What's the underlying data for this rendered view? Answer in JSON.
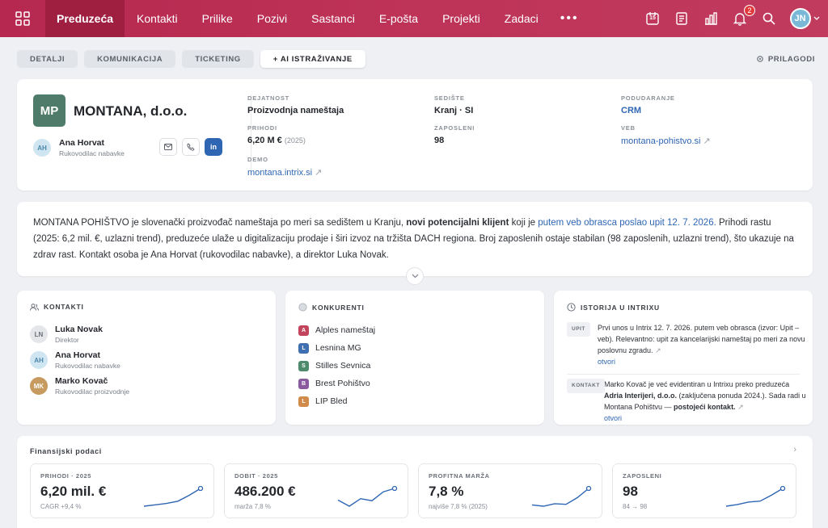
{
  "nav": {
    "items": [
      "Preduzeća",
      "Kontakti",
      "Prilike",
      "Pozivi",
      "Sastanci",
      "E-pošta",
      "Projekti",
      "Zadaci"
    ],
    "active_index": 0,
    "more": "•••",
    "calendar_day": "15",
    "notif_count": "2",
    "user_initials": "JN"
  },
  "subtabs": {
    "items": [
      "DETALJI",
      "KOMUNIKACIJA",
      "TICKETING",
      "+ AI ISTRAŽIVANJE"
    ],
    "active_index": 3,
    "customize": "PRILAGODI"
  },
  "company": {
    "logo_initials": "MP",
    "logo_color": "#4e7b6a",
    "name": "MONTANA, d.o.o.",
    "contact_initials": "AH",
    "contact_name": "Ana Horvat",
    "contact_role": "Rukovodilac nabavke",
    "linkedin": "in",
    "fields": {
      "industry_label": "DEJATNOST",
      "industry": "Proizvodnja nameštaja",
      "revenue_label": "PRIHODI",
      "revenue": "6,20 M €",
      "revenue_year": "(2025)",
      "demo_label": "DEMO",
      "demo": "montana.intrix.si",
      "hq_label": "SEDIŠTE",
      "hq": "Kranj · SI",
      "employees_label": "ZAPOSLENI",
      "employees": "98",
      "match_label": "PODUDARANJE",
      "match": "CRM",
      "web_label": "VEB",
      "web": "montana-pohistvo.si"
    }
  },
  "summary": {
    "p1": "MONTANA POHIŠTVO je slovenački proizvođač nameštaja po meri sa sedištem u Kranju, ",
    "b1": "novi potencijalni klijent",
    "p2": " koji je ",
    "l1": "putem veb obrasca poslao upit 12. 7. 2026.",
    "p3": " Prihodi rastu (2025: 6,2 mil. €, uzlazni trend), preduzeće ulaže u digitalizaciju prodaje i širi izvoz na tržišta DACH regiona. Broj zaposlenih ostaje stabilan (98 zaposlenih, uzlazni trend), što ukazuje na zdrav rast. Kontakt osoba je Ana Horvat (rukovodilac nabavke), a direktor Luka Novak."
  },
  "kontakti": {
    "title": "KONTAKTI",
    "items": [
      {
        "initials": "LN",
        "name": "Luka Novak",
        "role": "Direktor"
      },
      {
        "initials": "AH",
        "name": "Ana Horvat",
        "role": "Rukovodilac nabavke"
      },
      {
        "initials": "MK",
        "name": "Marko Kovač",
        "role": "Rukovodilac proizvodnje"
      }
    ]
  },
  "konkurenti": {
    "title": "KONKURENTI",
    "items": [
      {
        "letter": "A",
        "name": "Alples nameštaj",
        "color": "#c2455d"
      },
      {
        "letter": "L",
        "name": "Lesnina MG",
        "color": "#3f6fb0"
      },
      {
        "letter": "S",
        "name": "Stilles Sevnica",
        "color": "#4d8a6c"
      },
      {
        "letter": "B",
        "name": "Brest Pohištvo",
        "color": "#8a5a9e"
      },
      {
        "letter": "L",
        "name": "LIP Bled",
        "color": "#d08a4a"
      }
    ]
  },
  "istorija": {
    "title": "ISTORIJA U INTRIXU",
    "item1": {
      "tag": "UPIT",
      "text": "Prvi unos u Intrix 12. 7. 2026. putem veb obrasca (izvor: Upit – veb). Relevantno: upit za kancelarijski nameštaj po meri za novu poslovnu zgradu.",
      "link": "otvori"
    },
    "item2": {
      "tag": "KONTAKT",
      "t1": "Marko Kovač je već evidentiran u Intrixu preko preduzeća ",
      "b1": "Adria Interijeri, d.o.o.",
      "t2": " (zaključena ponuda 2024.). Sada radi u Montana Pohištvu — ",
      "b2": "postojeći kontakt.",
      "link": "otvori"
    }
  },
  "finance": {
    "title": "Finansijski podaci",
    "kpis": [
      {
        "label": "PRIHODI · 2025",
        "value": "6,20 mil. €",
        "sub": "CAGR +9,4 %",
        "trend": [
          2,
          2.3,
          2.6,
          3.1,
          4.4,
          5.9
        ]
      },
      {
        "label": "DOBIT · 2025",
        "value": "486.200 €",
        "sub": "marža 7,8 %",
        "trend": [
          3.4,
          2.5,
          3.6,
          3.3,
          4.6,
          5.1
        ]
      },
      {
        "label": "PROFITNA MARŽA",
        "value": "7,8 %",
        "sub": "najviše 7,8 % (2025)",
        "trend": [
          2.6,
          2.4,
          2.8,
          2.7,
          3.8,
          5.3
        ]
      },
      {
        "label": "ZAPOSLENI",
        "value": "98",
        "sub": "84 → 98",
        "trend": [
          2.3,
          2.5,
          2.8,
          2.9,
          3.6,
          4.4
        ]
      }
    ]
  },
  "colors": {
    "accent": "#b6284f",
    "link": "#2f66b3",
    "spark": "#2f66b3"
  }
}
